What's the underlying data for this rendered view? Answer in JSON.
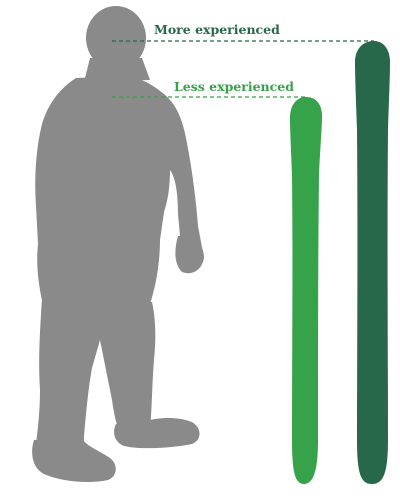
{
  "labels": {
    "more_experienced": "More experienced",
    "less_experienced": "Less experienced"
  },
  "colors": {
    "background": "#ffffff",
    "silhouette": "#8a8a8a",
    "light_green": "#36a24a",
    "dark_green": "#27674a",
    "more_label": "#27674a",
    "less_label": "#36a24a",
    "guide_line_more": "#27674a",
    "guide_line_less": "#36a24a"
  },
  "icons": {
    "person": "person-silhouette-icon",
    "short_ski": "ski-short-icon",
    "long_ski": "ski-long-icon"
  }
}
